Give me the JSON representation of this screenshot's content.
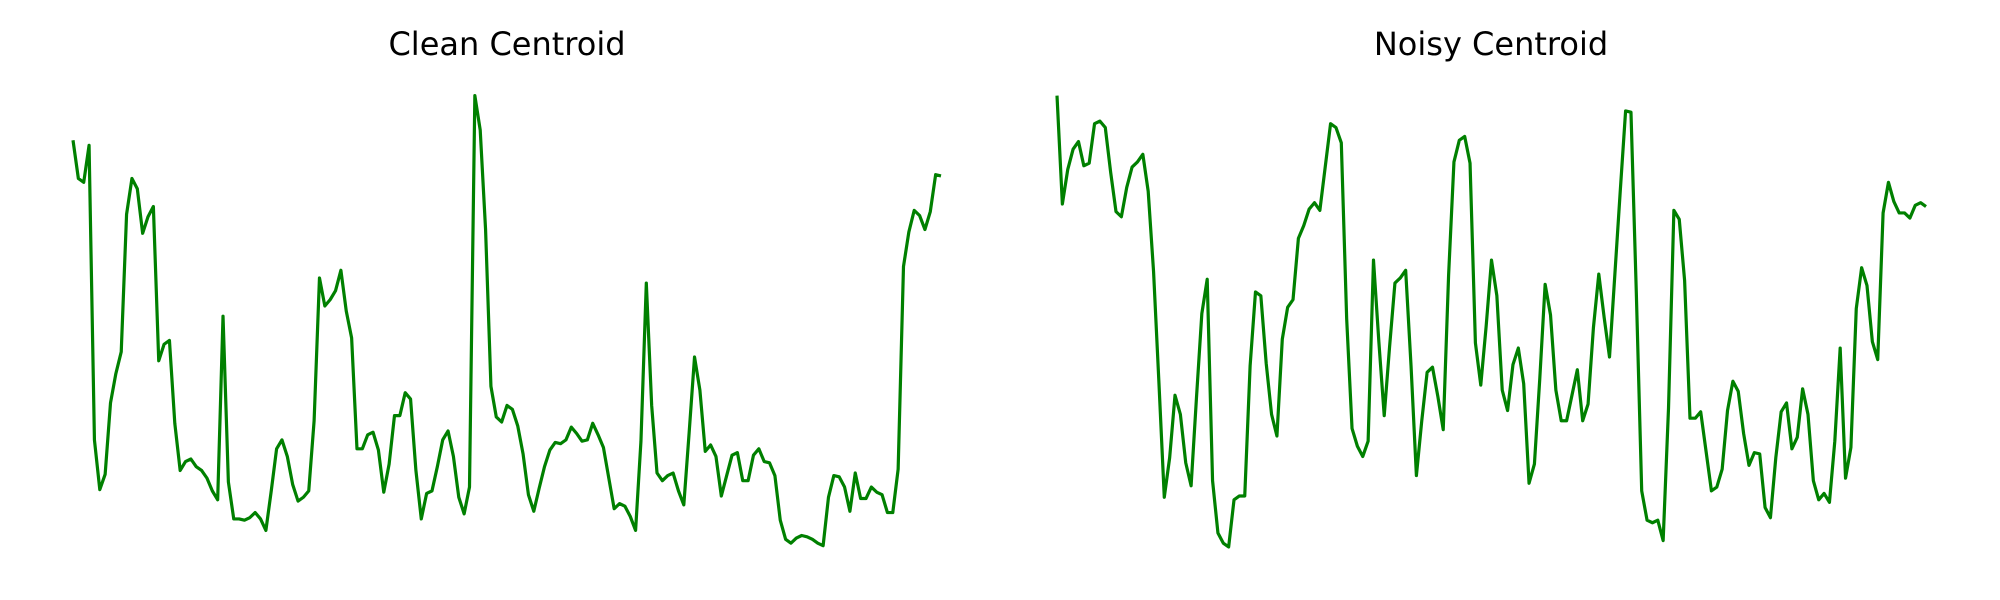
{
  "chart_data": [
    {
      "type": "line",
      "title": "Clean Centroid",
      "color": "#008000",
      "xlim": [
        0,
        162
      ],
      "ylim": [
        0,
        380
      ],
      "values": [
        330,
        300,
        297,
        326,
        95,
        56,
        68,
        124,
        147,
        164,
        272,
        300,
        292,
        257,
        270,
        278,
        157,
        170,
        173,
        108,
        71,
        78,
        80,
        74,
        71,
        65,
        55,
        48,
        192,
        62,
        33,
        33,
        32,
        34,
        38,
        33,
        24,
        55,
        88,
        95,
        82,
        60,
        47,
        50,
        55,
        110,
        222,
        200,
        205,
        212,
        228,
        196,
        175,
        88,
        88,
        99,
        101,
        87,
        54,
        76,
        114,
        114,
        132,
        127,
        71,
        33,
        53,
        55,
        74,
        95,
        102,
        82,
        50,
        37,
        58,
        365,
        338,
        260,
        137,
        113,
        109,
        122,
        119,
        106,
        84,
        52,
        39,
        57,
        74,
        87,
        93,
        92,
        95,
        105,
        100,
        94,
        95,
        108,
        99,
        89,
        65,
        41,
        45,
        43,
        35,
        24,
        94,
        218,
        122,
        69,
        63,
        67,
        69,
        55,
        44,
        101,
        160,
        134,
        86,
        91,
        82,
        51,
        67,
        83,
        85,
        63,
        63,
        83,
        88,
        78,
        77,
        67,
        32,
        17,
        14,
        18,
        20,
        19,
        17,
        14,
        12,
        50,
        67,
        66,
        58,
        39,
        69,
        49,
        49,
        58,
        54,
        52,
        38,
        38,
        72,
        231,
        258,
        275,
        271,
        260,
        274,
        303,
        302
      ]
    },
    {
      "type": "line",
      "title": "Noisy Centroid",
      "color": "#008000",
      "xlim": [
        0,
        162
      ],
      "ylim": [
        0,
        380
      ],
      "values": [
        365,
        280,
        307,
        323,
        329,
        310,
        312,
        343,
        345,
        340,
        305,
        274,
        270,
        293,
        309,
        313,
        319,
        290,
        227,
        140,
        50,
        81,
        130,
        115,
        77,
        59,
        128,
        194,
        221,
        63,
        22,
        14,
        11,
        48,
        51,
        51,
        153,
        211,
        208,
        155,
        115,
        98,
        174,
        199,
        205,
        253,
        263,
        276,
        281,
        275,
        309,
        343,
        340,
        328,
        190,
        104,
        90,
        82,
        94,
        236,
        172,
        114,
        168,
        218,
        222,
        228,
        153,
        67,
        110,
        148,
        152,
        129,
        103,
        224,
        313,
        330,
        333,
        312,
        171,
        138,
        184,
        236,
        208,
        134,
        118,
        154,
        167,
        139,
        61,
        76,
        143,
        217,
        193,
        134,
        110,
        110,
        130,
        150,
        110,
        123,
        183,
        225,
        191,
        160,
        225,
        290,
        353,
        352,
        210,
        55,
        32,
        30,
        32,
        16,
        120,
        275,
        268,
        220,
        112,
        112,
        117,
        86,
        55,
        58,
        72,
        118,
        141,
        133,
        100,
        75,
        85,
        84,
        42,
        34,
        81,
        117,
        124,
        88,
        97,
        135,
        115,
        63,
        48,
        53,
        46,
        94,
        167,
        65,
        89,
        198,
        230,
        216,
        172,
        158,
        273,
        297,
        282,
        273,
        273,
        269,
        279,
        281,
        278
      ]
    }
  ]
}
